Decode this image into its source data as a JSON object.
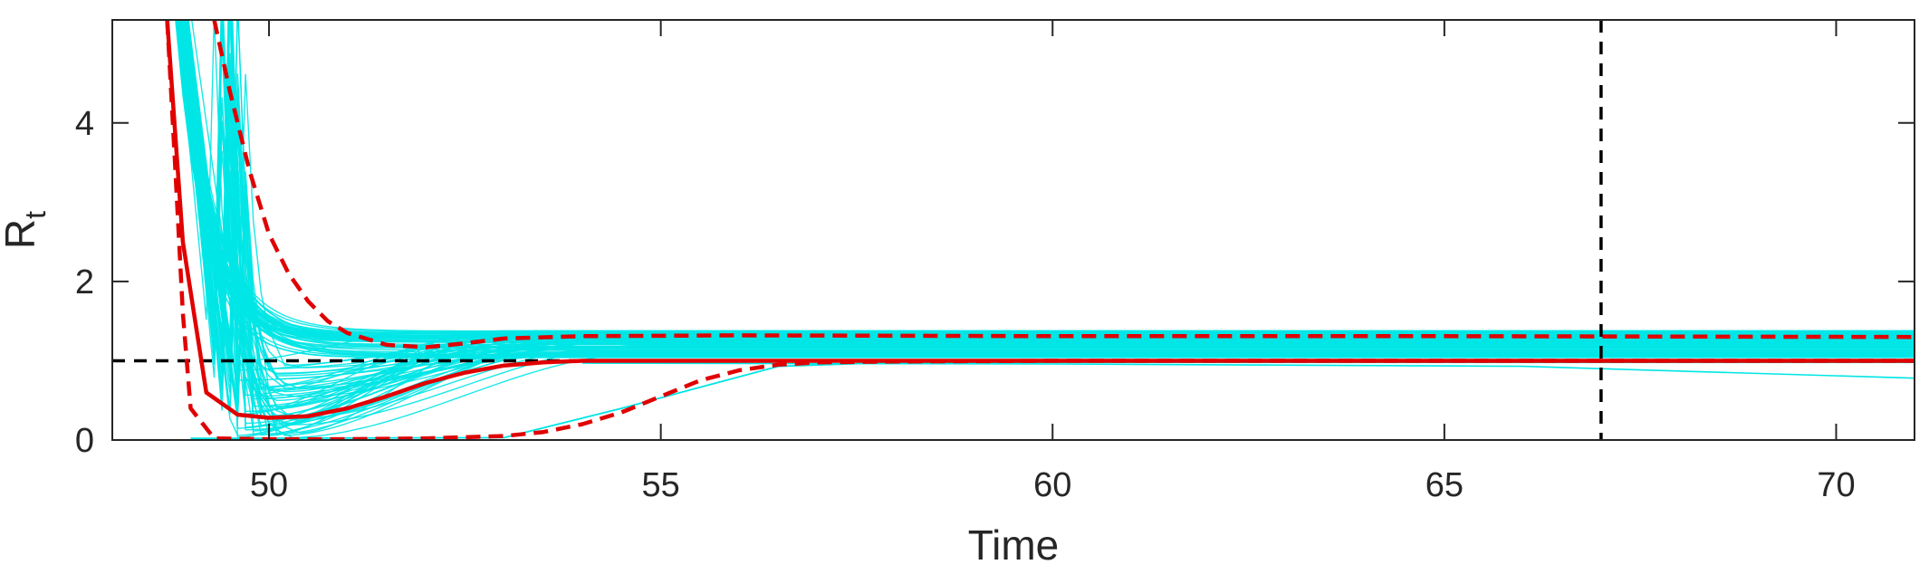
{
  "chart_data": {
    "type": "line",
    "title": "",
    "xlabel": "Time",
    "ylabel": "R",
    "ylabel_subscript": "t",
    "xlim": [
      48,
      71
    ],
    "ylim": [
      0,
      5.3
    ],
    "xticks": [
      50,
      55,
      60,
      65,
      70
    ],
    "yticks": [
      0,
      2,
      4
    ],
    "grid": false,
    "legend": "none",
    "reference_lines": [
      {
        "orientation": "horizontal",
        "value": 1,
        "style": "dashed",
        "color": "#000000"
      },
      {
        "orientation": "vertical",
        "value": 67,
        "style": "dashed",
        "color": "#000000"
      }
    ],
    "ensemble": {
      "color": "#00e5e5",
      "count": 100,
      "start_x": 48.8,
      "start_y_range": [
        5.3,
        6.5
      ],
      "late_decline_curve": {
        "x": [
          66,
          71
        ],
        "y": [
          0.93,
          0.78
        ]
      },
      "slow_curve": {
        "x": [
          49,
          53,
          54.5,
          56.5,
          58
        ],
        "y": [
          0.02,
          0.03,
          0.4,
          0.93,
          0.98
        ]
      }
    },
    "series": [
      {
        "role": "median",
        "color": "#e00000",
        "style": "solid",
        "x": [
          48.7,
          48.9,
          49.2,
          49.6,
          50,
          50.5,
          51,
          51.5,
          52,
          52.5,
          53,
          53.5,
          54,
          55,
          57,
          60,
          65,
          71
        ],
        "y": [
          5.3,
          2.5,
          0.6,
          0.32,
          0.28,
          0.3,
          0.4,
          0.55,
          0.72,
          0.85,
          0.94,
          0.98,
          1.0,
          1.0,
          1.0,
          1.0,
          1.0,
          1.0
        ]
      },
      {
        "role": "upper-bound",
        "color": "#e00000",
        "style": "dashed",
        "x": [
          49.3,
          49.5,
          49.75,
          50,
          50.25,
          50.5,
          50.75,
          51,
          51.5,
          52,
          52.5,
          53,
          54,
          56,
          60,
          65,
          71
        ],
        "y": [
          5.3,
          4.4,
          3.4,
          2.6,
          2.1,
          1.75,
          1.5,
          1.35,
          1.2,
          1.17,
          1.22,
          1.28,
          1.31,
          1.32,
          1.31,
          1.31,
          1.3
        ]
      },
      {
        "role": "lower-bound",
        "color": "#e00000",
        "style": "dashed",
        "x": [
          48.7,
          48.8,
          48.9,
          49,
          49.3,
          50,
          51,
          52,
          53,
          53.5,
          54,
          54.5,
          55,
          55.5,
          56,
          56.5,
          57,
          58,
          60,
          65,
          71
        ],
        "y": [
          5.3,
          3.5,
          1.6,
          0.4,
          0.02,
          0.01,
          0.01,
          0.02,
          0.05,
          0.1,
          0.2,
          0.35,
          0.55,
          0.75,
          0.88,
          0.95,
          0.98,
          0.99,
          1.0,
          1.0,
          1.0
        ]
      }
    ]
  }
}
